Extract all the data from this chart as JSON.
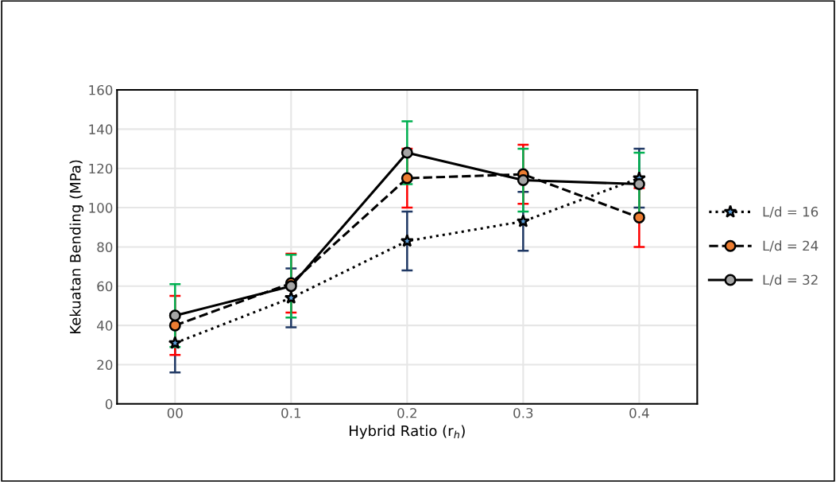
{
  "chart_data": {
    "type": "line",
    "xlabel": "Hybrid Ratio (r$_{h}$)",
    "ylabel": "Kekuatan Bending (MPa)",
    "categories": [
      "00",
      "0.1",
      "0.2",
      "0.3",
      "0.4"
    ],
    "series": [
      {
        "name": "L/d = 16",
        "color": "#5b9bd5",
        "marker": "star",
        "line_style": "dotted",
        "values": [
          31,
          54,
          83,
          93,
          115
        ],
        "errors": [
          15,
          15,
          15,
          15,
          15
        ]
      },
      {
        "name": "L/d = 24",
        "color": "#ed7d31",
        "marker": "circle",
        "line_style": "dashed",
        "values": [
          40,
          61.5,
          115,
          117,
          95
        ],
        "errors": [
          15,
          15,
          15,
          15,
          15
        ]
      },
      {
        "name": "L/d = 32",
        "color": "#a5a5a5",
        "marker": "circle",
        "line_style": "solid",
        "values": [
          45,
          60,
          128,
          114,
          112
        ],
        "errors": [
          16,
          16,
          16,
          16,
          16
        ]
      }
    ],
    "ylim": [
      0,
      160
    ],
    "yticks": [
      0,
      20,
      40,
      60,
      80,
      100,
      120,
      140,
      160
    ],
    "grid": true,
    "legend": "right"
  }
}
